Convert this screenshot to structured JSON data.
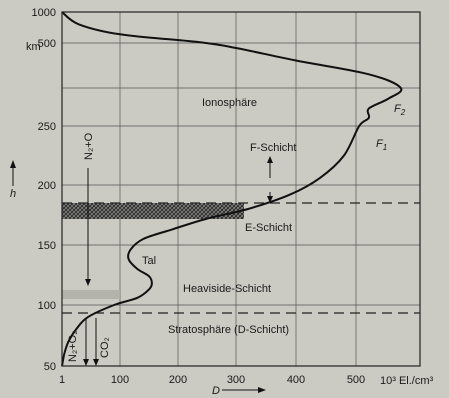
{
  "chart_data": {
    "type": "line",
    "xlabel": "D",
    "ylabel": "h",
    "x_unit": "10³ El./cm³",
    "y_unit": "km",
    "x_ticks": [
      1,
      100,
      200,
      300,
      400,
      500
    ],
    "y_ticks": [
      50,
      100,
      150,
      200,
      250,
      500,
      1000
    ],
    "grid": true,
    "profile": [
      [
        1,
        50
      ],
      [
        5,
        60
      ],
      [
        12,
        70
      ],
      [
        25,
        80
      ],
      [
        45,
        90
      ],
      [
        90,
        100
      ],
      [
        130,
        106
      ],
      [
        150,
        113
      ],
      [
        155,
        118
      ],
      [
        150,
        124
      ],
      [
        130,
        130
      ],
      [
        115,
        138
      ],
      [
        118,
        146
      ],
      [
        140,
        155
      ],
      [
        190,
        163
      ],
      [
        250,
        172
      ],
      [
        320,
        180
      ],
      [
        390,
        192
      ],
      [
        440,
        206
      ],
      [
        480,
        225
      ],
      [
        505,
        250
      ],
      [
        520,
        265
      ],
      [
        520,
        282
      ],
      [
        550,
        300
      ],
      [
        570,
        320
      ],
      [
        520,
        375
      ],
      [
        400,
        430
      ],
      [
        300,
        480
      ],
      [
        240,
        510
      ],
      [
        100,
        640
      ],
      [
        30,
        800
      ],
      [
        1,
        1000
      ]
    ],
    "layers": [
      {
        "label": "Stratosphäre (D-Schicht)",
        "h_top": 90
      },
      {
        "label": "Heaviside-Schicht",
        "h": 110
      },
      {
        "label": "Tal",
        "h": 130
      },
      {
        "label": "E-Schicht",
        "h_min": 172,
        "h_max": 183
      },
      {
        "label": "F-Schicht",
        "h_top": 320
      },
      {
        "label": "Ionosphäre"
      },
      {
        "label": "F",
        "subscript": "1"
      },
      {
        "label": "F",
        "subscript": "2"
      }
    ],
    "species": [
      {
        "label": "N₂+O"
      },
      {
        "label": "N₂+O₂"
      },
      {
        "label": "CO₂"
      }
    ]
  }
}
